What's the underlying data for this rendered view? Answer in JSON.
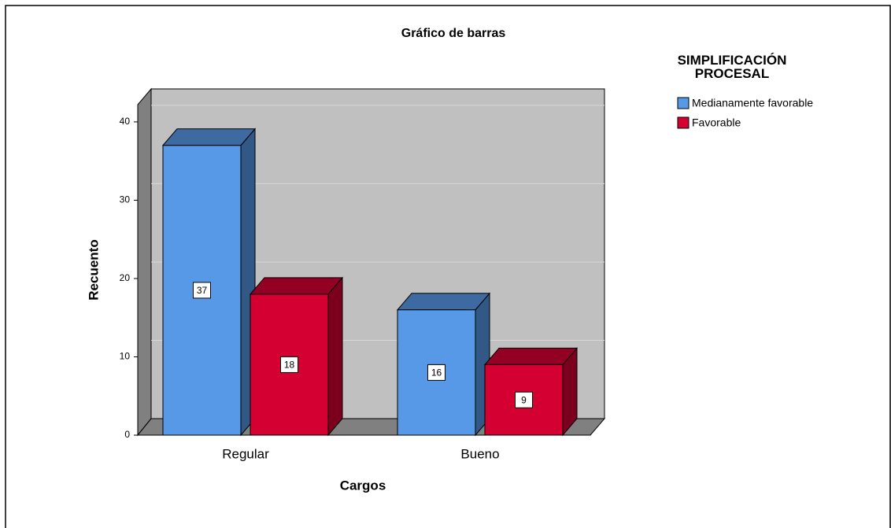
{
  "chart_data": {
    "type": "bar3d",
    "title": "Gráfico de barras",
    "x_label": "Cargos",
    "y_label": "Recuento",
    "legend_title": "SIMPLIFICACIÓN PROCESAL",
    "categories": [
      "Regular",
      "Bueno"
    ],
    "series": [
      {
        "name": "Medianamente favorable",
        "color": "#5799e6",
        "values": [
          37,
          16
        ]
      },
      {
        "name": "Favorable",
        "color": "#d40032",
        "values": [
          18,
          9
        ]
      }
    ],
    "ylim": [
      0,
      42
    ],
    "yticks": [
      0,
      10,
      20,
      30,
      40
    ],
    "grid": true,
    "legend": "right"
  }
}
